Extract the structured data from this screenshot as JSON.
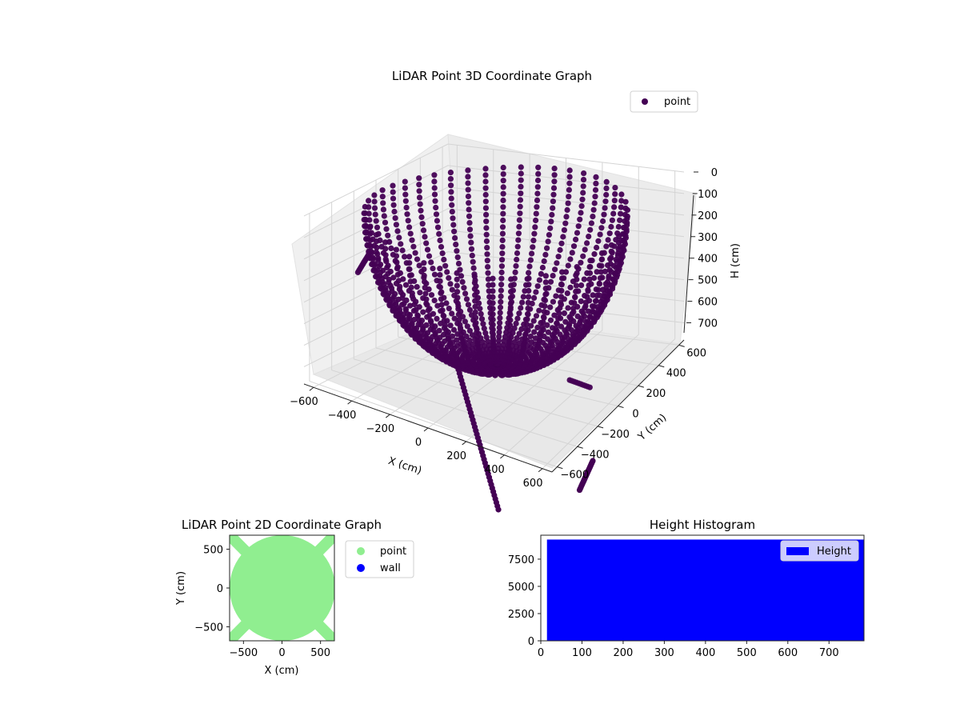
{
  "chart_data": [
    {
      "type": "scatter",
      "projection": "3d",
      "title": "LiDAR Point 3D Coordinate Graph",
      "xlabel": "X (cm)",
      "ylabel": "Y (cm)",
      "zlabel": "H (cm)",
      "xlim": [
        -650,
        650
      ],
      "ylim": [
        -650,
        650
      ],
      "zlim": [
        0,
        780
      ],
      "z_inverted": true,
      "xticks": [
        -600,
        -400,
        -200,
        0,
        200,
        400,
        600
      ],
      "yticks": [
        -600,
        -400,
        -200,
        0,
        200,
        400,
        600
      ],
      "zticks": [
        0,
        100,
        200,
        300,
        400,
        500,
        600,
        700
      ],
      "grid": true,
      "legend": {
        "placement": "upper-right",
        "entries": [
          "point"
        ]
      },
      "colors": {
        "point": "#440154"
      },
      "series": [
        {
          "name": "point",
          "description_of_shape": "bowl-shaped cloud of scan rings",
          "sample_points": [
            {
              "x": -500,
              "y": -400,
              "h": 100
            },
            {
              "x": -300,
              "y": 300,
              "h": 150
            },
            {
              "x": 0,
              "y": 450,
              "h": 50
            },
            {
              "x": 300,
              "y": 350,
              "h": 100
            },
            {
              "x": 500,
              "y": 0,
              "h": 250
            },
            {
              "x": 0,
              "y": 0,
              "h": 700
            },
            {
              "x": 200,
              "y": -300,
              "h": 600
            },
            {
              "x": -200,
              "y": 100,
              "h": 550
            },
            {
              "x": 600,
              "y": -300,
              "h": 500
            },
            {
              "x": -650,
              "y": -100,
              "h": 400
            }
          ]
        }
      ]
    },
    {
      "type": "scatter",
      "title": "LiDAR Point 2D Coordinate Graph",
      "xlabel": "X (cm)",
      "ylabel": "Y (cm)",
      "xlim": [
        -680,
        680
      ],
      "ylim": [
        -680,
        680
      ],
      "xticks": [
        -500,
        0,
        500
      ],
      "yticks": [
        -500,
        0,
        500
      ],
      "legend": {
        "placement": "outside-right",
        "entries": [
          "point",
          "wall"
        ]
      },
      "colors": {
        "point": "#90ee90",
        "wall": "#0000ff"
      },
      "series": [
        {
          "name": "point",
          "shape": "dense disk radius ~620 cm with diagonal strips to corners"
        },
        {
          "name": "wall",
          "values": []
        }
      ]
    },
    {
      "type": "bar",
      "title": "Height Histogram",
      "xlim": [
        0,
        785
      ],
      "ylim": [
        0,
        9700
      ],
      "xticks": [
        0,
        100,
        200,
        300,
        400,
        500,
        600,
        700
      ],
      "yticks": [
        0,
        2500,
        5000,
        7500
      ],
      "legend": {
        "placement": "upper-right",
        "entries": [
          "Height"
        ]
      },
      "colors": {
        "Height": "#0000ff"
      },
      "bins": {
        "start": 15,
        "end": 785,
        "count_per_bin": 9300
      }
    }
  ]
}
